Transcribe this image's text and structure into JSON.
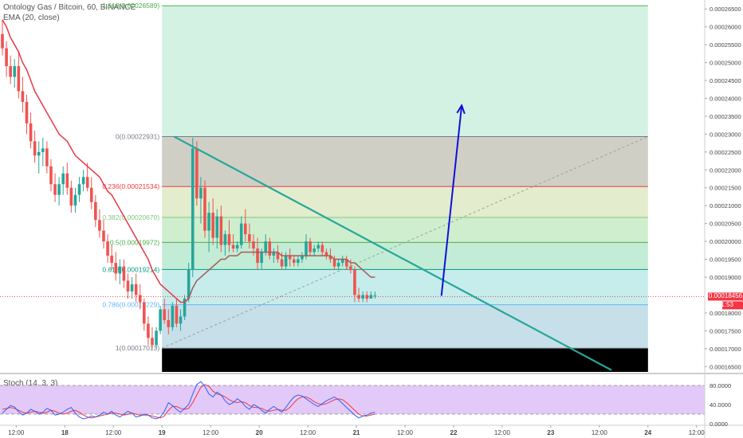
{
  "header": {
    "symbol_line": "Ontology Gas / Bitcoin, 60, BINANCE",
    "indicator_line": "EMA (20, close)"
  },
  "stoch_header": "Stoch (14, 3, 3)",
  "price_axis": {
    "ticks": [
      "0.00026500",
      "0.00026000",
      "0.00025500",
      "0.00025000",
      "0.00024500",
      "0.00024000",
      "0.00023500",
      "0.00023000",
      "0.00022500",
      "0.00022000",
      "0.00021500",
      "0.00021000",
      "0.00020500",
      "0.00020000",
      "0.00019500",
      "0.00019000",
      "0.00018000",
      "0.00017500",
      "0.00017000",
      "0.00016500"
    ],
    "tick_values": [
      0.000265,
      0.00026,
      0.000255,
      0.00025,
      0.000245,
      0.00024,
      0.000235,
      0.00023,
      0.000225,
      0.00022,
      0.000215,
      0.00021,
      0.000205,
      0.0002,
      0.000195,
      0.00019,
      0.00018,
      0.000175,
      0.00017,
      0.000165
    ],
    "last_price_label": "0.00018456",
    "last_price_value": 0.00018456,
    "countdown_label": "51:53",
    "last_price_color": "#f23645",
    "countdown_color": "#f23645"
  },
  "stoch_axis": {
    "ticks": [
      "80.0000",
      "40.0000",
      "0.0000"
    ],
    "tick_values": [
      80,
      40,
      0
    ]
  },
  "time_axis": {
    "labels": [
      "12:00",
      "18",
      "12:00",
      "19",
      "12:00",
      "20",
      "12:00",
      "21",
      "12:00",
      "22",
      "12:00",
      "23",
      "12:00",
      "24",
      "12:00"
    ],
    "bold": [
      false,
      true,
      false,
      true,
      false,
      true,
      false,
      true,
      false,
      true,
      false,
      true,
      false,
      true,
      false
    ]
  },
  "fib_levels": [
    {
      "label": "1.618(0.00026589)",
      "value": 0.00026589,
      "line_color": "#4caf50"
    },
    {
      "label": "0(0.00022931)",
      "value": 0.00022931,
      "line_color": "#787b86"
    },
    {
      "label": "0.236(0.00021534)",
      "value": 0.00021534,
      "line_color": "#f23645"
    },
    {
      "label": "0.382(0.00020670)",
      "value": 0.0002067,
      "line_color": "#81c784"
    },
    {
      "label": "0.5(0.00019972)",
      "value": 0.00019972,
      "line_color": "#4caf50"
    },
    {
      "label": "0.618(0.00019214)",
      "value": 0.00019214,
      "line_color": "#089981"
    },
    {
      "label": "0.786(0.00018229)",
      "value": 0.00018229,
      "line_color": "#64b5f6"
    },
    {
      "label": "1(0.00017013)",
      "value": 0.00017013,
      "line_color": "#787b86"
    }
  ],
  "fib_fill_colors": [
    "#d3f2e4",
    "#cfcfc6",
    "#e3eccc",
    "#cfeecd",
    "#c2ecd5",
    "#c6ecec",
    "#c6dfe9",
    "#b9d5e3"
  ],
  "colors": {
    "candle_up": "#26a69a",
    "candle_down": "#ef5350",
    "ema": "#e53945",
    "ema_recent": "#a35b5b",
    "trendline": "#26a69a",
    "arrow": "#1010d8",
    "fib_diagonal": "#9e9e9e",
    "stoch_k": "#2962ff",
    "stoch_d": "#f23645",
    "stoch_band": "#e3c9f7"
  },
  "chart_data": {
    "type": "candlestick",
    "series_name": "Ontology Gas / Bitcoin, 60, BINANCE",
    "price_range": [
      0.0001635,
      0.0002675
    ],
    "x_start": "2018-05-17T08:00",
    "interval_hours": 1,
    "candles": [
      [
        0.000258,
        0.000262,
        0.000252,
        0.000254
      ],
      [
        0.000254,
        0.000256,
        0.000246,
        0.000249
      ],
      [
        0.000249,
        0.000252,
        0.000244,
        0.000246
      ],
      [
        0.000246,
        0.000251,
        0.000243,
        0.000249
      ],
      [
        0.000249,
        0.000253,
        0.00024,
        0.000242
      ],
      [
        0.000242,
        0.000246,
        0.000236,
        0.000239
      ],
      [
        0.000239,
        0.000241,
        0.00023,
        0.000233
      ],
      [
        0.000233,
        0.000236,
        0.000226,
        0.000228
      ],
      [
        0.000228,
        0.000231,
        0.000222,
        0.000224
      ],
      [
        0.000224,
        0.000228,
        0.000219,
        0.000225
      ],
      [
        0.000225,
        0.000229,
        0.000221,
        0.000226
      ],
      [
        0.000226,
        0.000228,
        0.000219,
        0.000221
      ],
      [
        0.000221,
        0.000223,
        0.000214,
        0.000216
      ],
      [
        0.000216,
        0.000219,
        0.000211,
        0.000213
      ],
      [
        0.000213,
        0.000218,
        0.00021,
        0.000216
      ],
      [
        0.000216,
        0.000221,
        0.000213,
        0.000219
      ],
      [
        0.000219,
        0.000222,
        0.000213,
        0.000215
      ],
      [
        0.000215,
        0.000217,
        0.000208,
        0.00021
      ],
      [
        0.00021,
        0.000215,
        0.000208,
        0.000213
      ],
      [
        0.000213,
        0.000218,
        0.000211,
        0.000216
      ],
      [
        0.000216,
        0.00022,
        0.000214,
        0.000218
      ],
      [
        0.000218,
        0.000222,
        0.000214,
        0.000215
      ],
      [
        0.000215,
        0.000218,
        0.000209,
        0.000211
      ],
      [
        0.000211,
        0.000213,
        0.000204,
        0.000206
      ],
      [
        0.000206,
        0.000209,
        0.000201,
        0.000203
      ],
      [
        0.000203,
        0.000206,
        0.000198,
        0.0002
      ],
      [
        0.0002,
        0.000202,
        0.000194,
        0.000196
      ],
      [
        0.000196,
        0.000199,
        0.000192,
        0.000194
      ],
      [
        0.000194,
        0.000197,
        0.000189,
        0.000191
      ],
      [
        0.000191,
        0.000195,
        0.000188,
        0.000193
      ],
      [
        0.000193,
        0.000195,
        0.000187,
        0.000189
      ],
      [
        0.000189,
        0.000191,
        0.000184,
        0.000186
      ],
      [
        0.000186,
        0.00019,
        0.000184,
        0.000188
      ],
      [
        0.000188,
        0.000191,
        0.000183,
        0.000185
      ],
      [
        0.000185,
        0.000188,
        0.000181,
        0.000183
      ],
      [
        0.000183,
        0.000184,
        0.000175,
        0.000177
      ],
      [
        0.000177,
        0.000179,
        0.000171,
        0.000173
      ],
      [
        0.000173,
        0.000176,
        0.00017,
        0.000171
      ],
      [
        0.000171,
        0.000176,
        0.00017,
        0.000175
      ],
      [
        0.000175,
        0.000182,
        0.000174,
        0.000181
      ],
      [
        0.000181,
        0.000184,
        0.000177,
        0.000178
      ],
      [
        0.000178,
        0.000181,
        0.000174,
        0.000176
      ],
      [
        0.000176,
        0.000183,
        0.000175,
        0.000182
      ],
      [
        0.000182,
        0.000184,
        0.000176,
        0.000177
      ],
      [
        0.000177,
        0.000181,
        0.000175,
        0.000179
      ],
      [
        0.000179,
        0.000185,
        0.000178,
        0.000184
      ],
      [
        0.000184,
        0.000194,
        0.000183,
        0.000192
      ],
      [
        0.000192,
        0.000229,
        0.00019,
        0.000226
      ],
      [
        0.000226,
        0.000228,
        0.00021,
        0.000212
      ],
      [
        0.000212,
        0.000218,
        0.000205,
        0.000215
      ],
      [
        0.000215,
        0.000217,
        0.000201,
        0.000203
      ],
      [
        0.000203,
        0.000211,
        0.000197,
        0.000208
      ],
      [
        0.000208,
        0.000212,
        0.000199,
        0.000201
      ],
      [
        0.000201,
        0.000209,
        0.000198,
        0.000207
      ],
      [
        0.000207,
        0.00021,
        0.000197,
        0.000199
      ],
      [
        0.000199,
        0.000203,
        0.000196,
        0.000202
      ],
      [
        0.000202,
        0.000206,
        0.000197,
        0.000199
      ],
      [
        0.000199,
        0.000202,
        0.000197,
        0.000198
      ],
      [
        0.000198,
        0.0002,
        0.000197,
        0.000199
      ],
      [
        0.000199,
        0.000207,
        0.000198,
        0.000205
      ],
      [
        0.000205,
        0.000209,
        0.0002,
        0.000202
      ],
      [
        0.000202,
        0.000205,
        0.000198,
        0.0002
      ],
      [
        0.0002,
        0.000202,
        0.000196,
        0.000198
      ],
      [
        0.000198,
        0.000201,
        0.000192,
        0.000194
      ],
      [
        0.000194,
        0.000198,
        0.000192,
        0.000197
      ],
      [
        0.000197,
        0.000202,
        0.000196,
        0.0002
      ],
      [
        0.0002,
        0.000201,
        0.000195,
        0.000196
      ],
      [
        0.000196,
        0.000198,
        0.000194,
        0.000197
      ],
      [
        0.000197,
        0.000199,
        0.000194,
        0.000195
      ],
      [
        0.000195,
        0.000197,
        0.000192,
        0.000193
      ],
      [
        0.000193,
        0.000197,
        0.000192,
        0.000196
      ],
      [
        0.000196,
        0.000198,
        0.000193,
        0.000195
      ],
      [
        0.000195,
        0.000196,
        0.000193,
        0.000194
      ],
      [
        0.000194,
        0.000196,
        0.000193,
        0.000195
      ],
      [
        0.000195,
        0.000197,
        0.000194,
        0.000196
      ],
      [
        0.000196,
        0.000202,
        0.000195,
        0.0002
      ],
      [
        0.0002,
        0.000201,
        0.000196,
        0.000197
      ],
      [
        0.000197,
        0.000199,
        0.000196,
        0.000198
      ],
      [
        0.000198,
        0.0002,
        0.000197,
        0.000199
      ],
      [
        0.000199,
        0.0002,
        0.000196,
        0.000197
      ],
      [
        0.000197,
        0.000198,
        0.000195,
        0.000196
      ],
      [
        0.000196,
        0.000198,
        0.000194,
        0.000195
      ],
      [
        0.000195,
        0.000196,
        0.000192,
        0.000193
      ],
      [
        0.000193,
        0.000195,
        0.000192,
        0.000194
      ],
      [
        0.000194,
        0.000196,
        0.000193,
        0.000195
      ],
      [
        0.000195,
        0.000196,
        0.000192,
        0.000193
      ],
      [
        0.000193,
        0.000195,
        0.000191,
        0.000192
      ],
      [
        0.000192,
        0.000193,
        0.000183,
        0.000185
      ],
      [
        0.000185,
        0.000187,
        0.000183,
        0.000184
      ],
      [
        0.000184,
        0.000186,
        0.000183,
        0.000185
      ],
      [
        0.000185,
        0.000186,
        0.000183,
        0.000184
      ],
      [
        0.000184,
        0.000186,
        0.000184,
        0.000185
      ],
      [
        0.000185,
        0.000186,
        0.000184,
        0.000185
      ]
    ],
    "ema": [
      0.000262,
      0.00026,
      0.000257,
      0.000255,
      0.000253,
      0.00025,
      0.000248,
      0.000245,
      0.000242,
      0.00024,
      0.000238,
      0.000236,
      0.000234,
      0.000232,
      0.00023,
      0.000229,
      0.000228,
      0.000226,
      0.000224,
      0.000223,
      0.000222,
      0.000221,
      0.00022,
      0.000219,
      0.000218,
      0.000216,
      0.000214,
      0.000213,
      0.000211,
      0.000209,
      0.000207,
      0.000205,
      0.000203,
      0.000201,
      0.000199,
      0.000197,
      0.000195,
      0.000192,
      0.00019,
      0.000188,
      0.000187,
      0.000186,
      0.000185,
      0.000184,
      0.000183,
      0.000183,
      0.000184,
      0.000187,
      0.000189,
      0.00019,
      0.000191,
      0.000192,
      0.000193,
      0.000194,
      0.000195,
      0.000195,
      0.000196,
      0.000196,
      0.000196,
      0.000197,
      0.000197,
      0.000197,
      0.000197,
      0.000197,
      0.000197,
      0.000197,
      0.000197,
      0.000197,
      0.000197,
      0.000196,
      0.000196,
      0.000196,
      0.000196,
      0.000196,
      0.000196,
      0.000196,
      0.000196,
      0.000196,
      0.000196,
      0.000196,
      0.000196,
      0.000196,
      0.000195,
      0.000195,
      0.000195,
      0.000195,
      0.000194,
      0.000194,
      0.000193,
      0.000192,
      0.000191,
      0.00019,
      0.00019
    ],
    "stoch": {
      "k": [
        22,
        30,
        38,
        35,
        25,
        18,
        22,
        30,
        26,
        20,
        24,
        32,
        28,
        18,
        20,
        24,
        30,
        34,
        22,
        14,
        10,
        12,
        16,
        14,
        18,
        24,
        20,
        26,
        18,
        14,
        20,
        26,
        22,
        14,
        16,
        20,
        18,
        12,
        10,
        14,
        26,
        44,
        38,
        30,
        24,
        32,
        40,
        62,
        82,
        88,
        78,
        62,
        56,
        66,
        60,
        48,
        40,
        44,
        52,
        46,
        36,
        30,
        40,
        36,
        28,
        22,
        30,
        36,
        30,
        24,
        34,
        46,
        56,
        60,
        58,
        52,
        46,
        40,
        36,
        42,
        48,
        52,
        56,
        50,
        42,
        34,
        26,
        18,
        12,
        16,
        18,
        22,
        24
      ],
      "d": [
        30,
        32,
        34,
        32,
        28,
        24,
        22,
        24,
        26,
        24,
        22,
        24,
        28,
        26,
        22,
        20,
        22,
        26,
        28,
        24,
        18,
        14,
        12,
        14,
        16,
        18,
        20,
        22,
        22,
        20,
        18,
        20,
        22,
        20,
        18,
        18,
        18,
        16,
        14,
        12,
        16,
        28,
        36,
        36,
        32,
        30,
        32,
        44,
        60,
        76,
        82,
        78,
        68,
        62,
        60,
        56,
        50,
        46,
        44,
        46,
        44,
        38,
        34,
        34,
        32,
        28,
        26,
        28,
        30,
        28,
        28,
        34,
        44,
        52,
        56,
        56,
        52,
        46,
        42,
        40,
        42,
        46,
        50,
        52,
        50,
        44,
        36,
        28,
        20,
        16,
        16,
        18,
        20
      ],
      "upper_band": 80,
      "lower_band": 20
    },
    "trendline": {
      "start": [
        "2018-05-19T03:00",
        0.0002293
      ],
      "end": [
        "2018-05-23T15:00",
        0.000164
      ]
    },
    "arrow": {
      "start": [
        "2018-05-21T21:00",
        0.0001848
      ],
      "end": [
        "2018-05-22T02:00",
        0.000238
      ]
    }
  }
}
